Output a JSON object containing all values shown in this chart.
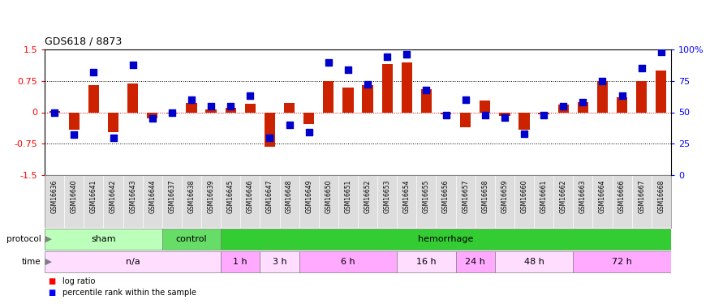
{
  "title": "GDS618 / 8873",
  "samples": [
    "GSM16636",
    "GSM16640",
    "GSM16641",
    "GSM16642",
    "GSM16643",
    "GSM16644",
    "GSM16637",
    "GSM16638",
    "GSM16639",
    "GSM16645",
    "GSM16646",
    "GSM16647",
    "GSM16648",
    "GSM16649",
    "GSM16650",
    "GSM16651",
    "GSM16652",
    "GSM16653",
    "GSM16654",
    "GSM16655",
    "GSM16656",
    "GSM16657",
    "GSM16658",
    "GSM16659",
    "GSM16660",
    "GSM16661",
    "GSM16662",
    "GSM16663",
    "GSM16664",
    "GSM16666",
    "GSM16667",
    "GSM16668"
  ],
  "log_ratio": [
    0.02,
    -0.42,
    0.64,
    -0.48,
    0.68,
    -0.15,
    -0.02,
    0.23,
    0.07,
    0.1,
    0.2,
    -0.82,
    0.22,
    -0.28,
    0.75,
    0.6,
    0.65,
    1.15,
    1.2,
    0.55,
    -0.05,
    -0.35,
    0.28,
    -0.08,
    -0.42,
    -0.05,
    0.18,
    0.25,
    0.75,
    0.35,
    0.75,
    1.0
  ],
  "percentile": [
    50,
    32,
    82,
    30,
    88,
    45,
    50,
    60,
    55,
    55,
    63,
    30,
    40,
    34,
    90,
    84,
    72,
    94,
    96,
    68,
    48,
    60,
    48,
    46,
    33,
    48,
    55,
    58,
    75,
    63,
    85,
    98
  ],
  "protocol_groups": [
    {
      "label": "sham",
      "start": 0,
      "end": 6,
      "color": "#bbffbb"
    },
    {
      "label": "control",
      "start": 6,
      "end": 9,
      "color": "#66dd66"
    },
    {
      "label": "hemorrhage",
      "start": 9,
      "end": 32,
      "color": "#33cc33"
    }
  ],
  "time_groups": [
    {
      "label": "n/a",
      "start": 0,
      "end": 9,
      "color": "#ffddff"
    },
    {
      "label": "1 h",
      "start": 9,
      "end": 11,
      "color": "#ffaaff"
    },
    {
      "label": "3 h",
      "start": 11,
      "end": 13,
      "color": "#ffddff"
    },
    {
      "label": "6 h",
      "start": 13,
      "end": 18,
      "color": "#ffaaff"
    },
    {
      "label": "16 h",
      "start": 18,
      "end": 21,
      "color": "#ffddff"
    },
    {
      "label": "24 h",
      "start": 21,
      "end": 23,
      "color": "#ffaaff"
    },
    {
      "label": "48 h",
      "start": 23,
      "end": 27,
      "color": "#ffddff"
    },
    {
      "label": "72 h",
      "start": 27,
      "end": 32,
      "color": "#ffaaff"
    }
  ],
  "bar_color": "#cc2200",
  "dot_color": "#0000cc",
  "ylim": [
    -1.5,
    1.5
  ],
  "yticks_left": [
    -1.5,
    -0.75,
    0.0,
    0.75,
    1.5
  ],
  "yticks_right": [
    0,
    25,
    50,
    75,
    100
  ],
  "bar_width": 0.55,
  "dot_size": 28,
  "label_bg": "#dddddd"
}
